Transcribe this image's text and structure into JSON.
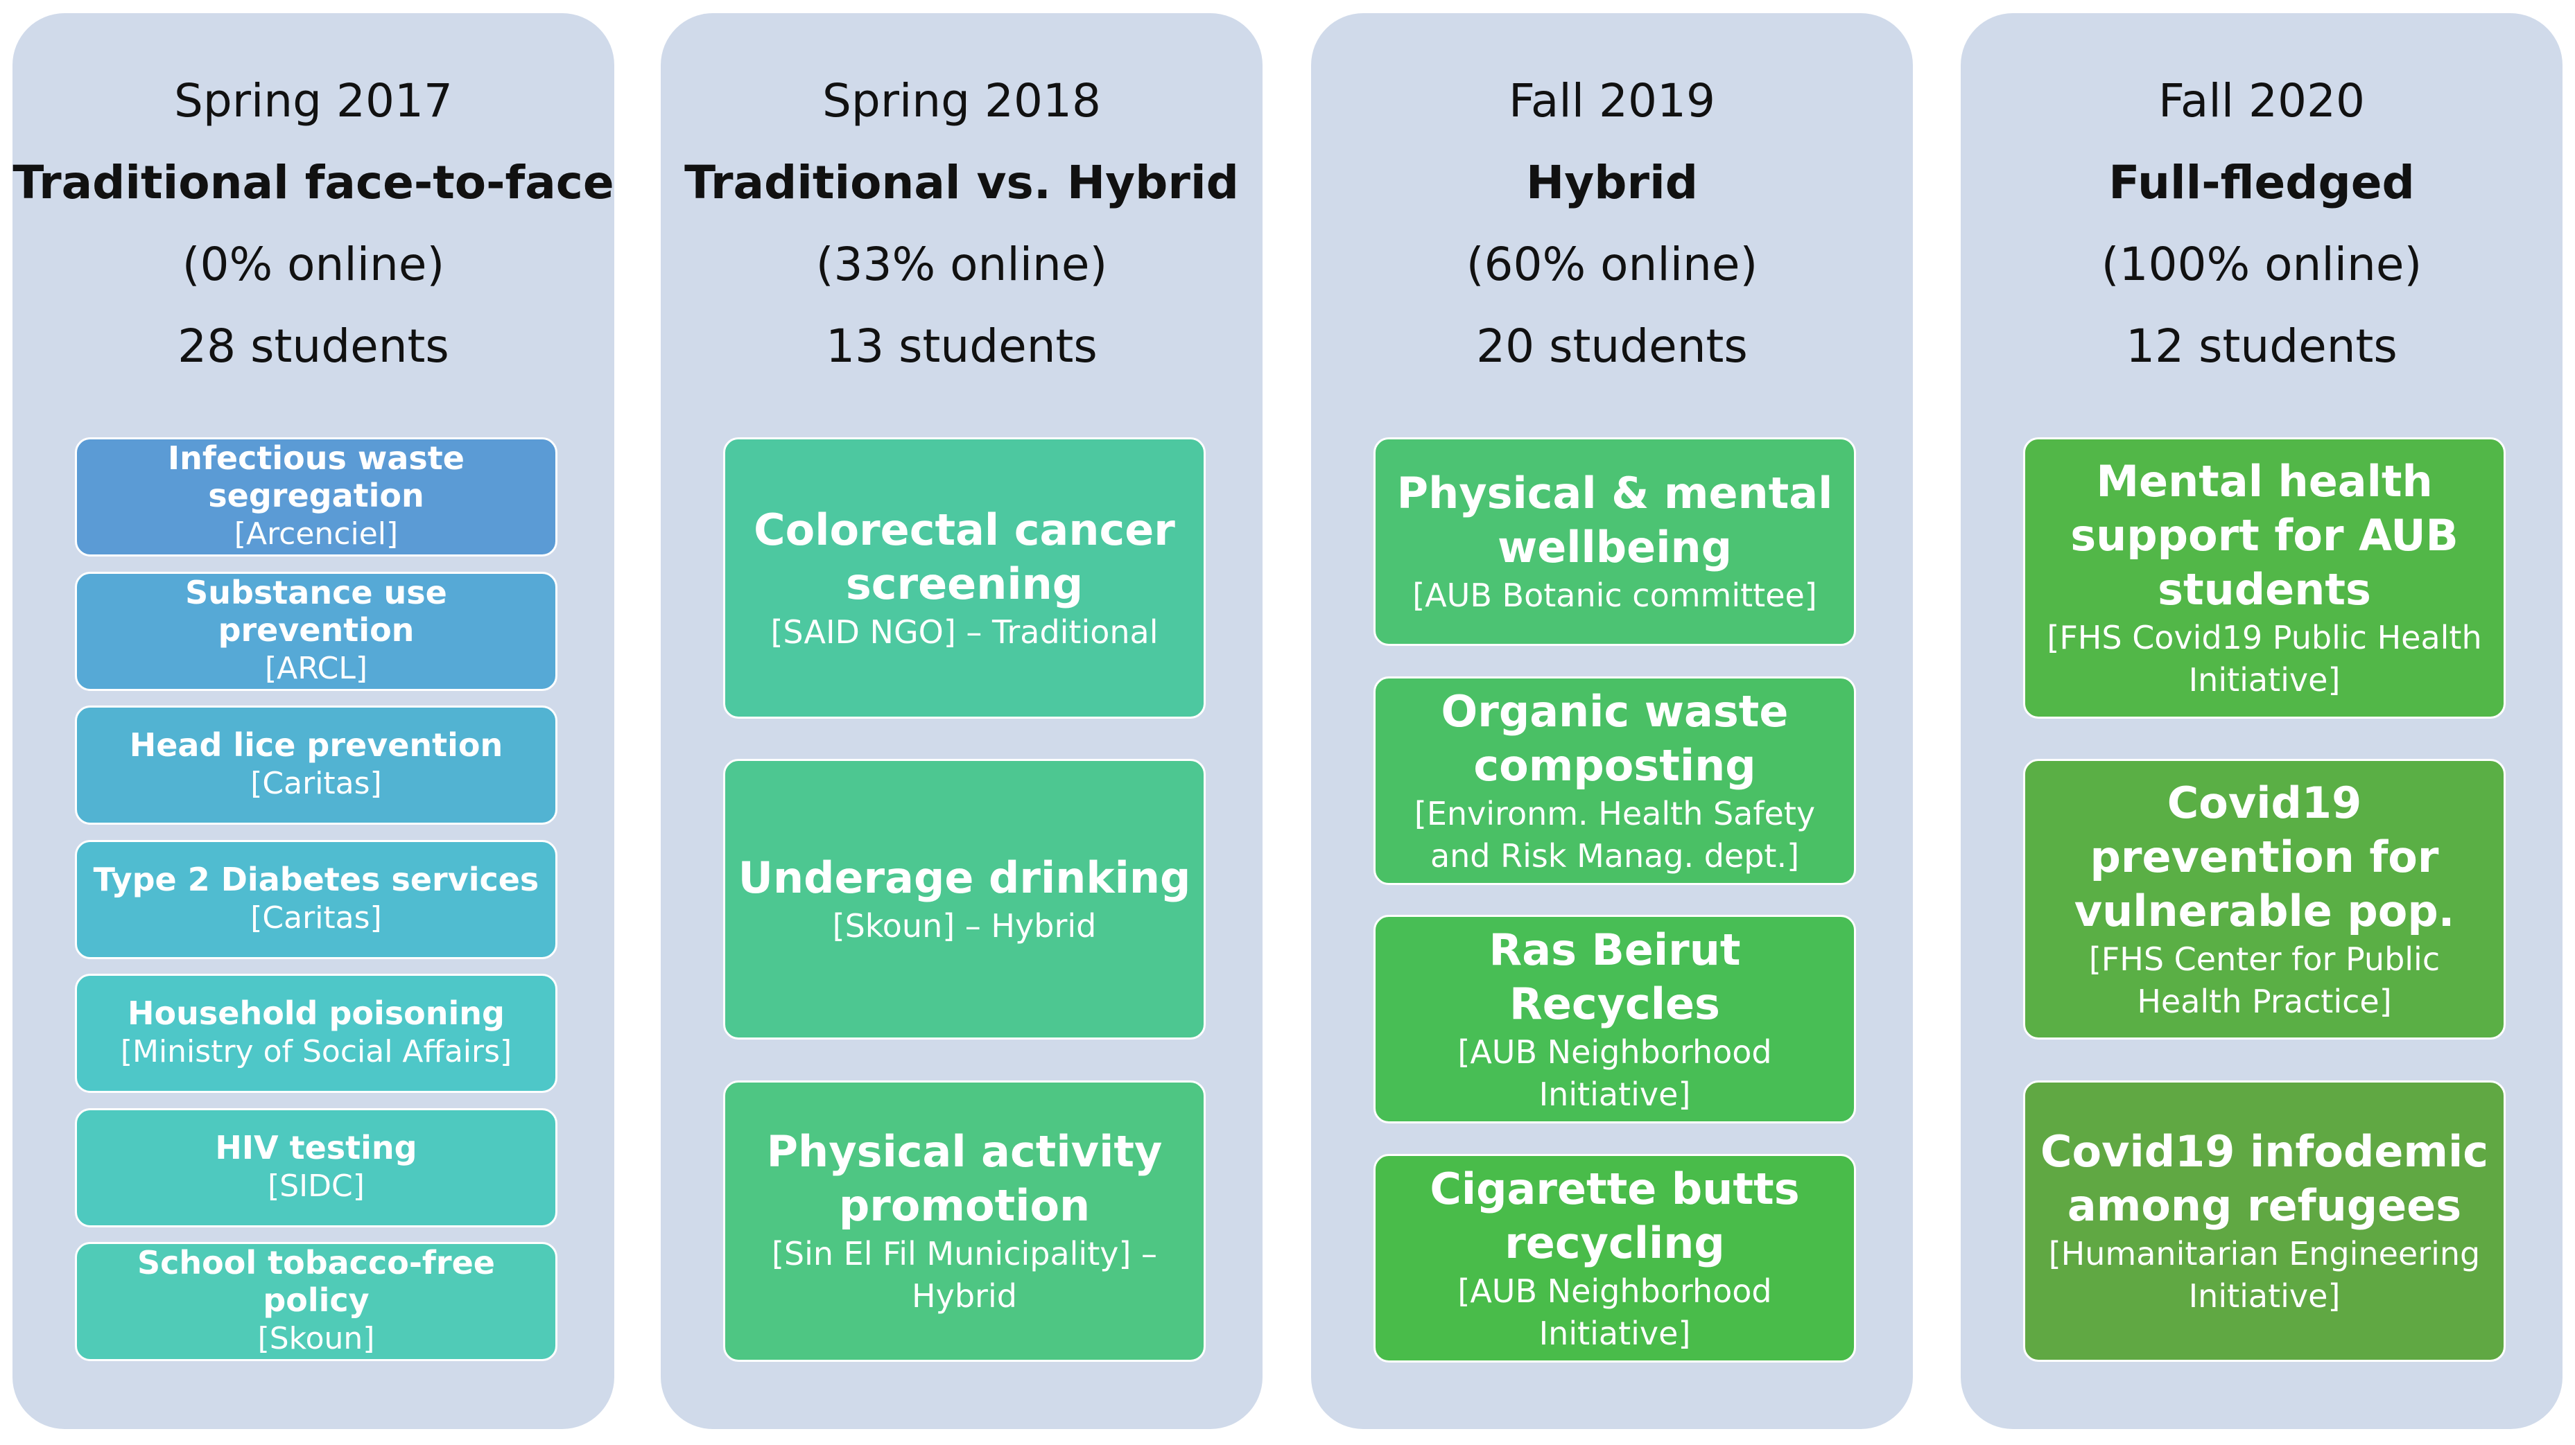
{
  "columns": [
    {
      "period": "Spring 2017",
      "model": "Traditional face-to-face",
      "online": "(0% online)",
      "students": "28 students",
      "projects": [
        {
          "title": "Infectious waste segregation",
          "org": "[Arcenciel]",
          "color": "#5b9bd5"
        },
        {
          "title": "Substance use prevention",
          "org": "[ARCL]",
          "color": "#56a9d6"
        },
        {
          "title": "Head lice prevention",
          "org": "[Caritas]",
          "color": "#52b3d2"
        },
        {
          "title": "Type 2 Diabetes services",
          "org": "[Caritas]",
          "color": "#50bcd0"
        },
        {
          "title": "Household poisoning",
          "org": "[Ministry of Social Affairs]",
          "color": "#4ec7c8"
        },
        {
          "title": "HIV testing",
          "org": "[SIDC]",
          "color": "#4ec9bf"
        },
        {
          "title": "School tobacco-free policy",
          "org": "[Skoun]",
          "color": "#50cbb7"
        }
      ]
    },
    {
      "period": "Spring 2018",
      "model": "Traditional vs. Hybrid",
      "online": "(33% online)",
      "students": "13 students",
      "projects": [
        {
          "title": "Colorectal cancer screening",
          "org": "[SAID NGO] – Traditional",
          "color": "#4dc8a0"
        },
        {
          "title": "Underage drinking",
          "org": "[Skoun] – Hybrid",
          "color": "#4dc791"
        },
        {
          "title": "Physical activity promotion",
          "org": "[Sin El Fil Municipality] – Hybrid",
          "color": "#4ec683"
        }
      ]
    },
    {
      "period": "Fall 2019",
      "model": "Hybrid",
      "online": "(60% online)",
      "students": "20 students",
      "projects": [
        {
          "title": "Physical & mental wellbeing",
          "org": "[AUB Botanic committee]",
          "color": "#4cc373"
        },
        {
          "title": "Organic waste composting",
          "org": "[Environm. Health Safety and Risk Manag. dept.]",
          "color": "#4ac065"
        },
        {
          "title": "Ras Beirut Recycles",
          "org": "[AUB Neighborhood Initiative]",
          "color": "#48be55"
        },
        {
          "title": "Cigarette butts recycling",
          "org": "[AUB Neighborhood Initiative]",
          "color": "#49bc4a"
        }
      ]
    },
    {
      "period": "Fall 2020",
      "model": "Full-fledged",
      "online": "(100% online)",
      "students": "12 students",
      "projects": [
        {
          "title": "Mental health support for AUB students",
          "org": "[FHS Covid19 Public Health Initiative]",
          "color": "#52b748"
        },
        {
          "title": "Covid19 prevention for vulnerable pop.",
          "org": "[FHS Center for Public Health Practice]",
          "color": "#5aaf45"
        },
        {
          "title": "Covid19 infodemic among refugees",
          "org": "[Humanitarian Engineering Initiative]",
          "color": "#60a843"
        }
      ]
    }
  ]
}
